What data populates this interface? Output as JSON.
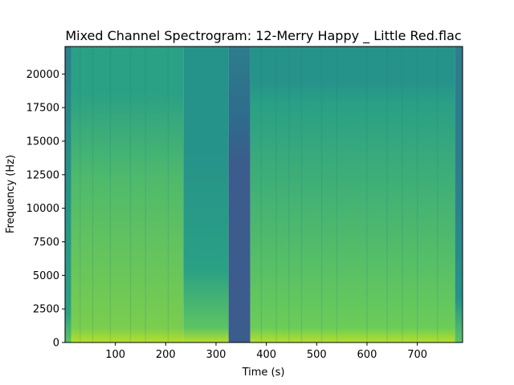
{
  "chart_data": {
    "type": "heatmap",
    "title": "Mixed Channel Spectrogram: 12-Merry Happy _ Little Red.flac",
    "xlabel": "Time (s)",
    "ylabel": "Frequency (Hz)",
    "xlim": [
      0,
      790
    ],
    "ylim": [
      0,
      22050
    ],
    "xticks": [
      100,
      200,
      300,
      400,
      500,
      600,
      700
    ],
    "yticks": [
      0,
      2500,
      5000,
      7500,
      10000,
      12500,
      15000,
      17500,
      20000
    ],
    "colormap": "viridis",
    "grid": false,
    "colorbar": false,
    "segments": [
      {
        "start": 0,
        "end": 12,
        "level": "low-mid"
      },
      {
        "start": 12,
        "end": 235,
        "level": "high"
      },
      {
        "start": 235,
        "end": 325,
        "level": "mid"
      },
      {
        "start": 325,
        "end": 368,
        "level": "silence"
      },
      {
        "start": 368,
        "end": 775,
        "level": "mid-high"
      },
      {
        "start": 775,
        "end": 790,
        "level": "low"
      }
    ]
  },
  "colors": {
    "silence": "#3b5c8c",
    "low": "#2d7d8c",
    "mid": "#26938a",
    "mid_high": "#2aa085",
    "high": "#4fba6c",
    "peak": "#b5de2b"
  }
}
